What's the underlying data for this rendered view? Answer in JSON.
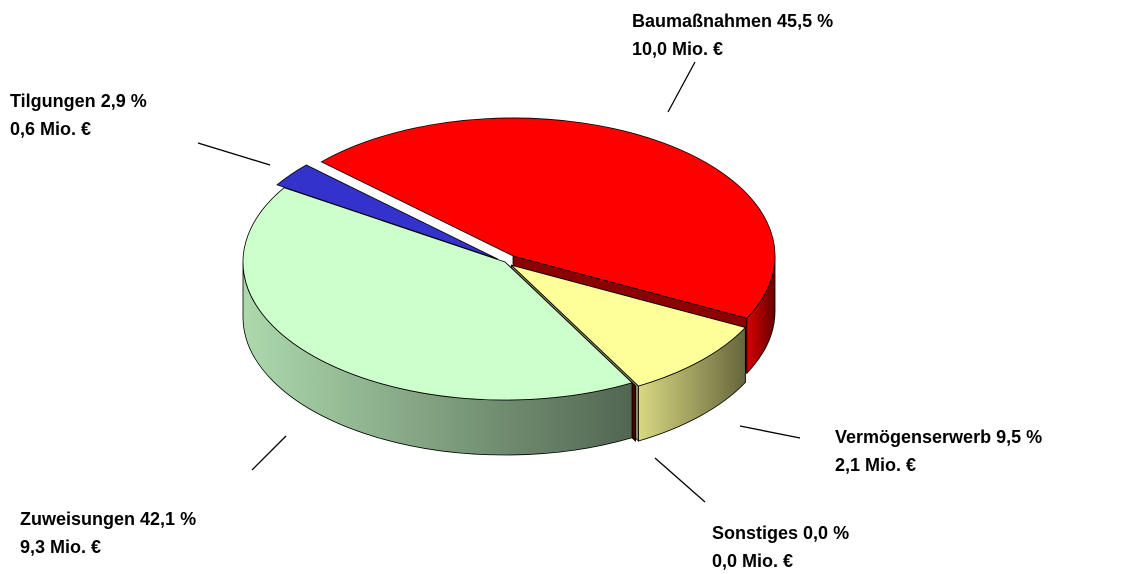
{
  "chart_data": {
    "type": "pie",
    "categories": [
      "Baumaßnahmen",
      "Vermögenserwerb",
      "Sonstiges",
      "Zuweisungen",
      "Tilgungen"
    ],
    "values": [
      45.5,
      9.5,
      0.0,
      42.1,
      2.9
    ],
    "value_labels": [
      "45,5 %",
      "9,5 %",
      "0,0 %",
      "42,1 %",
      "2,9 %"
    ],
    "amounts": [
      10.0,
      2.1,
      0.0,
      9.3,
      0.6
    ],
    "amount_labels": [
      "10,0 Mio. €",
      "2,1 Mio. €",
      "0,0 Mio. €",
      "9,3 Mio. €",
      "0,6 Mio. €"
    ],
    "colors": [
      "#ff0000",
      "#ffff99",
      "#800000",
      "#ccffcc",
      "#3333cc"
    ]
  }
}
